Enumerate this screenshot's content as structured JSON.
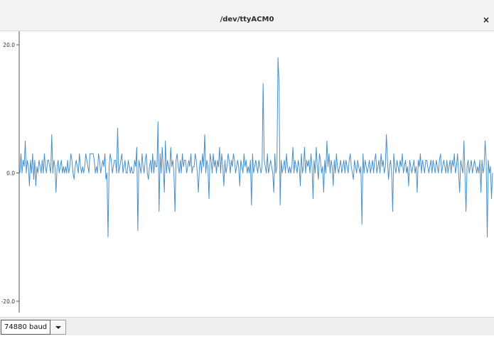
{
  "window": {
    "title": "/dev/ttyACM0",
    "close_glyph": "×",
    "close_icon": "close-icon"
  },
  "plot": {
    "line_color": "#4a90c8",
    "y_ticks": [
      "20.0",
      "0.0",
      "-20.0"
    ]
  },
  "chart_data": {
    "type": "line",
    "ylim": [
      -20,
      20
    ],
    "grid": false,
    "series": [
      {
        "values": [
          0,
          3,
          0,
          2,
          1,
          5,
          0,
          2,
          1,
          -2,
          2,
          0,
          3,
          -1,
          2,
          -2,
          1,
          0,
          2,
          1,
          0,
          2,
          0,
          3,
          1,
          0,
          2,
          2,
          1,
          0,
          6,
          0,
          2,
          1,
          -3,
          1,
          2,
          0,
          1,
          2,
          0,
          1,
          0,
          1,
          0,
          2,
          0,
          1,
          3,
          2,
          0,
          -1,
          1,
          2,
          1,
          0,
          3,
          1,
          0,
          1,
          0,
          1,
          3,
          2,
          1,
          0,
          3,
          3,
          3,
          3,
          2,
          0,
          1,
          0,
          3,
          2,
          0,
          1,
          2,
          1,
          3,
          -1,
          0,
          -10,
          1,
          3,
          2,
          0,
          1,
          2,
          2,
          0,
          7,
          0,
          1,
          2,
          3,
          0,
          1,
          2,
          0,
          0,
          2,
          1,
          0,
          1,
          0,
          0,
          2,
          1,
          4,
          -9,
          2,
          1,
          0,
          3,
          1,
          0,
          2,
          3,
          0,
          -1,
          1,
          2,
          0,
          3,
          0,
          2,
          1,
          1,
          8,
          -6,
          3,
          0,
          4,
          1,
          -3,
          5,
          0,
          2,
          1,
          0,
          4,
          1,
          2,
          0,
          -6,
          2,
          3,
          1,
          0,
          2,
          0,
          3,
          1,
          2,
          2,
          0,
          1,
          2,
          1,
          3,
          0,
          1,
          1,
          3,
          2,
          0,
          -3,
          1,
          2,
          0,
          3,
          1,
          6,
          0,
          2,
          1,
          -4,
          3,
          2,
          0,
          3,
          1,
          2,
          0,
          2,
          1,
          4,
          0,
          3,
          1,
          -2,
          2,
          0,
          1,
          3,
          2,
          0,
          2,
          1,
          3,
          2,
          0,
          1,
          2,
          1,
          -2,
          2,
          1,
          0,
          3,
          1,
          2,
          0,
          1,
          0,
          2,
          -5,
          3,
          0,
          1,
          2,
          1,
          0,
          2,
          1,
          0,
          1,
          14,
          2,
          1,
          0,
          3,
          0,
          1,
          2,
          1,
          0,
          -3,
          3,
          0,
          1,
          18,
          14,
          -5,
          2,
          0,
          1,
          2,
          0,
          3,
          1,
          0,
          1,
          0,
          1,
          4,
          0,
          2,
          1,
          0,
          2,
          1,
          -2,
          3,
          0,
          1,
          4,
          0,
          2,
          1,
          2,
          0,
          3,
          1,
          -4,
          2,
          0,
          4,
          1,
          -1,
          3,
          2,
          0,
          1,
          -3,
          2,
          0,
          5,
          1,
          3,
          0,
          2,
          1,
          -2,
          2,
          0,
          3,
          1,
          0,
          1,
          2,
          0,
          1,
          2,
          0,
          2,
          1,
          0,
          2,
          3,
          1,
          0,
          -1,
          2,
          1,
          0,
          2,
          1,
          0,
          1,
          -8,
          3,
          0,
          2,
          1,
          0,
          1,
          2,
          0,
          1,
          2,
          0,
          2,
          3,
          0,
          1,
          2,
          0,
          3,
          1,
          2,
          0,
          1,
          6,
          2,
          -1,
          1,
          2,
          0,
          -6,
          3,
          1,
          0,
          2,
          1,
          0,
          2,
          1,
          3,
          0,
          1,
          2,
          0,
          1,
          -2,
          2,
          1,
          0,
          1,
          2,
          0,
          1,
          -3,
          2,
          1,
          3,
          0,
          2,
          1,
          0,
          2,
          2,
          1,
          0,
          1,
          2,
          0,
          2,
          1,
          0,
          2,
          1,
          0,
          2,
          3,
          0,
          1,
          2,
          1,
          0,
          2,
          0,
          1,
          2,
          0,
          2,
          1,
          3,
          0,
          1,
          3,
          0,
          -3,
          2,
          1,
          0,
          5,
          0,
          -6,
          1,
          2,
          0,
          1,
          2,
          0,
          1,
          2,
          1,
          0,
          1,
          0,
          2,
          -3,
          2,
          0,
          1,
          5,
          2,
          -10,
          2,
          0,
          1,
          -4,
          0
        ]
      }
    ]
  },
  "baud": {
    "value": "74880 baud",
    "dropdown_icon": "chevron-down-icon"
  }
}
